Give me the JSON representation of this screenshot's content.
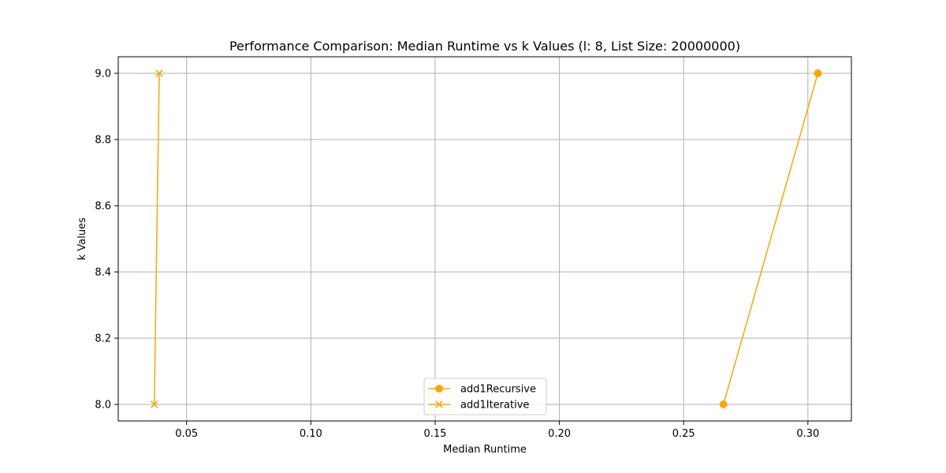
{
  "chart_data": {
    "type": "line",
    "title": "Performance Comparison: Median Runtime vs k Values (l: 8, List Size: 20000000)",
    "xlabel": "Median Runtime",
    "ylabel": "k Values",
    "xlim": [
      0.0225,
      0.3175
    ],
    "ylim": [
      7.95,
      9.05
    ],
    "xticks": [
      0.05,
      0.1,
      0.15,
      0.2,
      0.25,
      0.3
    ],
    "xtick_labels": [
      "0.05",
      "0.10",
      "0.15",
      "0.20",
      "0.25",
      "0.30"
    ],
    "yticks": [
      8.0,
      8.2,
      8.4,
      8.6,
      8.8,
      9.0
    ],
    "ytick_labels": [
      "8.0",
      "8.2",
      "8.4",
      "8.6",
      "8.8",
      "9.0"
    ],
    "grid": true,
    "legend_position": "lower-center",
    "series": [
      {
        "name": "add1Recursive",
        "color": "#ffa500",
        "marker": "circle",
        "x": [
          0.266,
          0.304
        ],
        "y": [
          8,
          9
        ]
      },
      {
        "name": "add1Iterative",
        "color": "#ffa500",
        "marker": "x",
        "x": [
          0.037,
          0.039
        ],
        "y": [
          8,
          9
        ]
      }
    ]
  }
}
